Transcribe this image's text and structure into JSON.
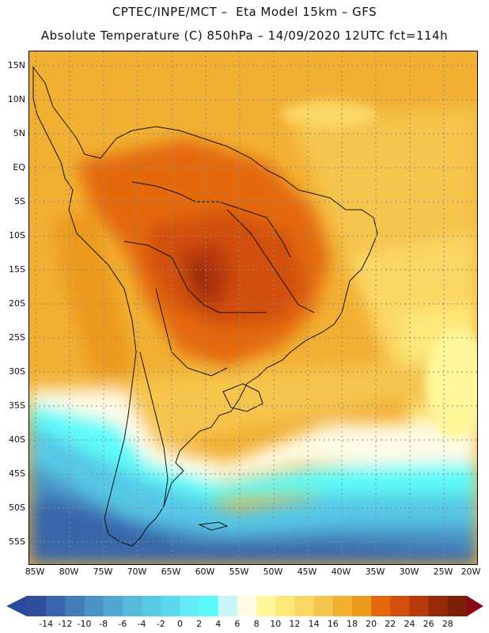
{
  "header": {
    "line1": "CPTEC/INPE/MCT –  Eta Model 15km – GFS",
    "line2": "Absolute Temperature (C) 850hPa – 14/09/2020 12UTC fct=114h"
  },
  "map": {
    "lat_labels": [
      "15N",
      "10N",
      "5N",
      "EQ",
      "5S",
      "10S",
      "15S",
      "20S",
      "25S",
      "30S",
      "35S",
      "40S",
      "45S",
      "50S",
      "55S"
    ],
    "lon_labels": [
      "85W",
      "80W",
      "75W",
      "70W",
      "65W",
      "60W",
      "55W",
      "50W",
      "45W",
      "40W",
      "35W",
      "30W",
      "25W",
      "20W"
    ]
  },
  "colorbar": {
    "labels": [
      "-14",
      "-12",
      "-10",
      "-8",
      "-6",
      "-4",
      "-2",
      "0",
      "2",
      "4",
      "6",
      "8",
      "10",
      "12",
      "14",
      "16",
      "18",
      "20",
      "22",
      "24",
      "26",
      "28"
    ],
    "colors": [
      "#2f4f9b",
      "#3966aa",
      "#417db8",
      "#4a93c6",
      "#4fa7d2",
      "#55b9dc",
      "#57c8e6",
      "#5ad8ef",
      "#63eaf7",
      "#5efafa",
      "#c8f5fa",
      "#fffbe6",
      "#fff79a",
      "#fde87a",
      "#fbd765",
      "#f6c54e",
      "#f2b033",
      "#ec9a1c",
      "#e4690e",
      "#d2500c",
      "#b8390a",
      "#962a08",
      "#7c1f08"
    ],
    "under_color": "#2a4aa0",
    "over_color": "#8a0a1a"
  }
}
